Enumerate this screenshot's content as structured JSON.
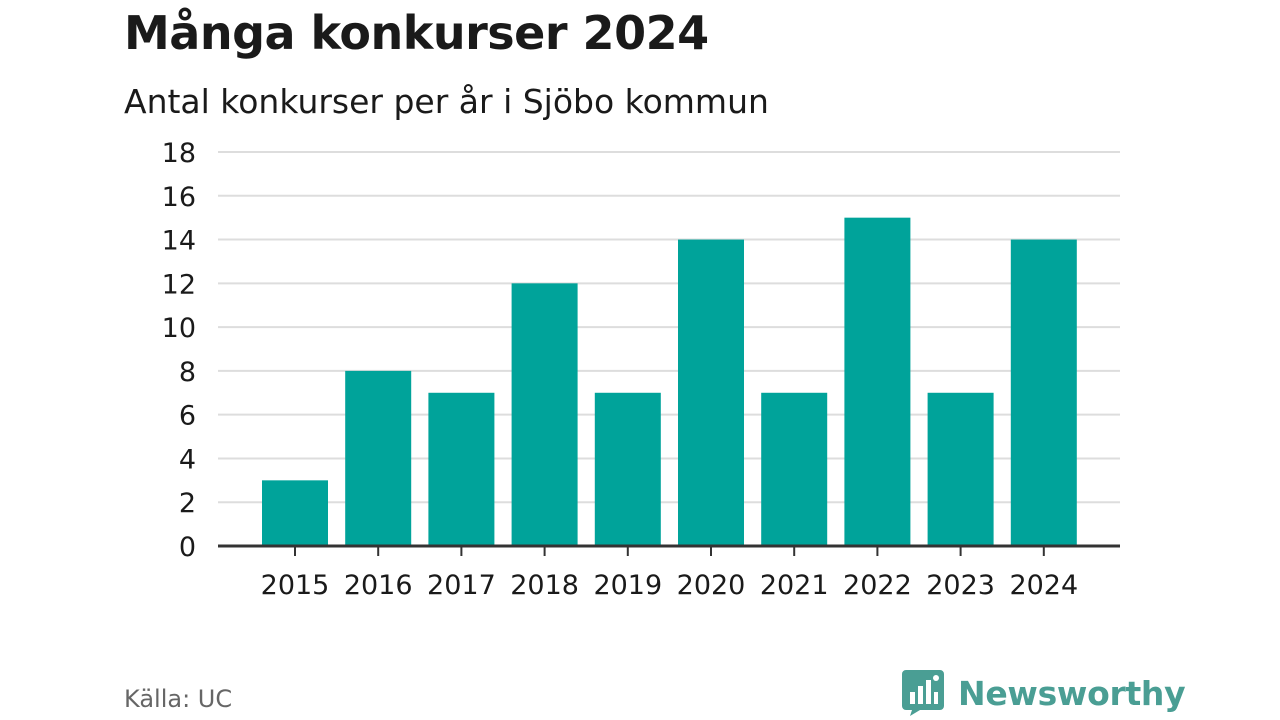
{
  "header": {
    "title": "Många konkurser 2024",
    "subtitle": "Antal konkurser per år i Sjöbo kommun"
  },
  "chart_data": {
    "type": "bar",
    "categories": [
      "2015",
      "2016",
      "2017",
      "2018",
      "2019",
      "2020",
      "2021",
      "2022",
      "2023",
      "2024"
    ],
    "values": [
      3,
      8,
      7,
      12,
      7,
      14,
      7,
      15,
      7,
      14
    ],
    "title": "Många konkurser 2024",
    "subtitle": "Antal konkurser per år i Sjöbo kommun",
    "xlabel": "",
    "ylabel": "",
    "ylim": [
      0,
      18
    ],
    "yticks": [
      0,
      2,
      4,
      6,
      8,
      10,
      12,
      14,
      16,
      18
    ],
    "grid": true,
    "legend": "none"
  },
  "footer": {
    "source": "Källa: UC",
    "brand_name": "Newsworthy",
    "brand_icon": "newsworthy-logo-icon"
  },
  "colors": {
    "bar": "#00a39a",
    "grid": "#dddddd",
    "axis": "#333333",
    "brand": "#4a9e94",
    "text": "#1a1a1a",
    "muted": "#666666"
  }
}
